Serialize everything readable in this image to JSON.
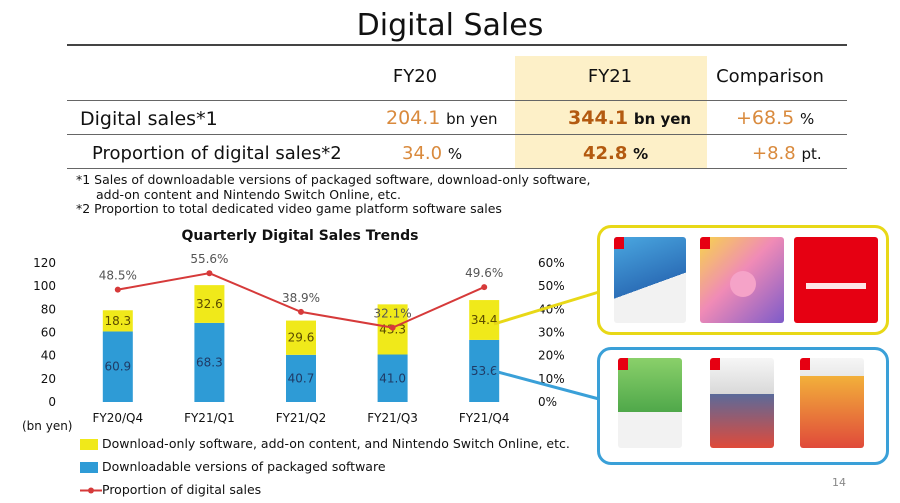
{
  "header": {
    "title": "Digital Sales"
  },
  "table": {
    "columns": [
      "FY20",
      "FY21",
      "Comparison"
    ],
    "rows": [
      {
        "label": "Digital sales*1",
        "fy20": "204.1",
        "fy20_unit": "bn yen",
        "fy21": "344.1",
        "fy21_unit": "bn yen",
        "cmp": "+68.5",
        "cmp_unit": "%"
      },
      {
        "label": "Proportion of digital sales*2",
        "fy20": "34.0",
        "fy20_unit": "%",
        "fy21": "42.8",
        "fy21_unit": "%",
        "cmp": "+8.8",
        "cmp_unit": "pt."
      }
    ],
    "highlight_color": "#fdf0c8"
  },
  "notes": [
    "*1 Sales of downloadable versions of packaged software, download-only software,",
    "add-on content and Nintendo Switch Online, etc.",
    "*2 Proportion to total dedicated video game platform software sales"
  ],
  "chart_data": {
    "type": "bar",
    "title": "Quarterly Digital Sales Trends",
    "categories": [
      "FY20/Q4",
      "FY21/Q1",
      "FY21/Q2",
      "FY21/Q3",
      "FY21/Q4"
    ],
    "stacked": true,
    "series": [
      {
        "name": "Downloadable versions of packaged software",
        "values": [
          60.9,
          68.3,
          40.7,
          41.0,
          53.6
        ],
        "color": "#2e9bd6"
      },
      {
        "name": "Download-only software, add-on content, and Nintendo Switch Online, etc.",
        "values": [
          18.3,
          32.6,
          29.6,
          43.3,
          34.4
        ],
        "color": "#f0e91a"
      }
    ],
    "line_series": {
      "name": "Proportion of digital sales",
      "values": [
        48.5,
        55.6,
        38.9,
        32.1,
        49.6
      ],
      "labels": [
        "48.5%",
        "55.6%",
        "38.9%",
        "32.1%",
        "49.6%"
      ],
      "color": "#d63a3a"
    },
    "ylim": [
      0,
      120
    ],
    "yticks": [
      "0",
      "20",
      "40",
      "60",
      "80",
      "100",
      "120"
    ],
    "y2lim": [
      0,
      60
    ],
    "y2ticks": [
      "0%",
      "10%",
      "20%",
      "30%",
      "40%",
      "50%",
      "60%"
    ],
    "ylabel": "(bn yen)",
    "legend_position": "bottom-left"
  },
  "panels": {
    "top_color": "#e8d817",
    "bottom_color": "#3aa0d8"
  },
  "footer": {
    "page": "14"
  }
}
